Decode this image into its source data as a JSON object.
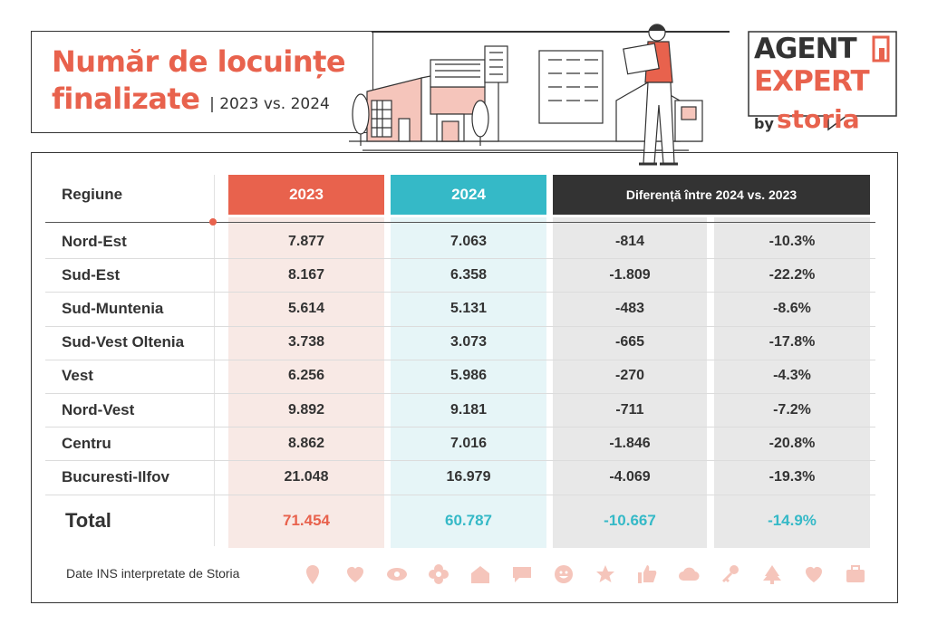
{
  "header": {
    "title_line1": "Număr de locuințe",
    "title_line2": "finalizate",
    "subtitle": "| 2023 vs. 2024"
  },
  "logo": {
    "line1": "AGENT",
    "line2": "EXPERT",
    "by": "by",
    "brand": "storia"
  },
  "table": {
    "col_region": "Regiune",
    "col_2023": "2023",
    "col_2024": "2024",
    "col_diff": "Diferență între 2024 vs. 2023",
    "rows": [
      {
        "region": "Nord-Est",
        "v2023": "7.877",
        "v2024": "7.063",
        "diff": "-814",
        "pct": "-10.3%"
      },
      {
        "region": "Sud-Est",
        "v2023": "8.167",
        "v2024": "6.358",
        "diff": "-1.809",
        "pct": "-22.2%"
      },
      {
        "region": "Sud-Muntenia",
        "v2023": "5.614",
        "v2024": "5.131",
        "diff": "-483",
        "pct": "-8.6%"
      },
      {
        "region": "Sud-Vest Oltenia",
        "v2023": "3.738",
        "v2024": "3.073",
        "diff": "-665",
        "pct": "-17.8%"
      },
      {
        "region": "Vest",
        "v2023": "6.256",
        "v2024": "5.986",
        "diff": "-270",
        "pct": "-4.3%"
      },
      {
        "region": "Nord-Vest",
        "v2023": "9.892",
        "v2024": "9.181",
        "diff": "-711",
        "pct": "-7.2%"
      },
      {
        "region": "Centru",
        "v2023": "8.862",
        "v2024": "7.016",
        "diff": "-1.846",
        "pct": "-20.8%"
      },
      {
        "region": "Bucuresti-Ilfov",
        "v2023": "21.048",
        "v2024": "16.979",
        "diff": "-4.069",
        "pct": "-19.3%"
      }
    ],
    "total": {
      "label": "Total",
      "v2023": "71.454",
      "v2024": "60.787",
      "diff": "-10.667",
      "pct": "-14.9%"
    }
  },
  "footer": {
    "source": "Date INS interpretate de Storia",
    "icons": [
      "pin-icon",
      "heart-icon",
      "eye-icon",
      "flower-icon",
      "house-icon",
      "chat-icon",
      "smiley-icon",
      "star-icon",
      "thumbs-up-icon",
      "cloud-icon",
      "key-icon",
      "tree-icon",
      "heart-icon",
      "briefcase-icon"
    ]
  },
  "colors": {
    "coral": "#e8624d",
    "teal": "#35b9c7",
    "dark": "#333333",
    "coral_light": "#f8e9e5",
    "teal_light": "#e6f5f7",
    "grey_light": "#e8e8e8",
    "icon_pink": "#f5c5bb"
  }
}
